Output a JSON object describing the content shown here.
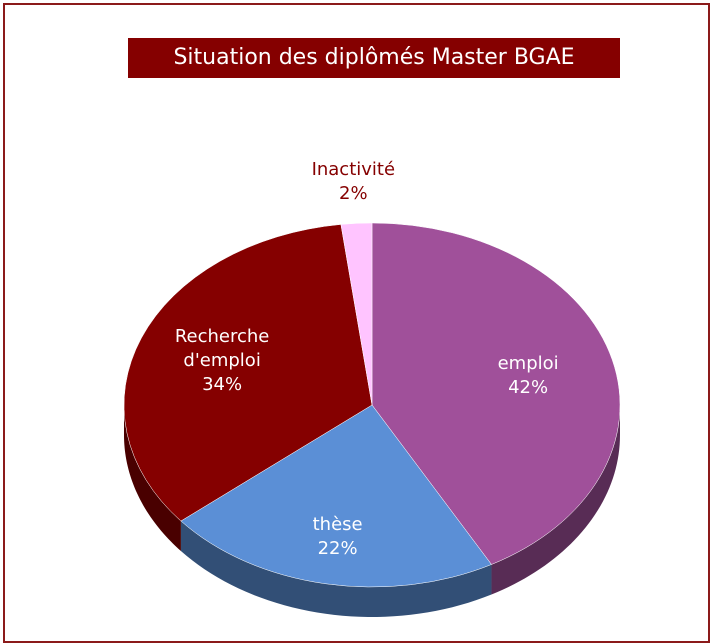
{
  "chart_data": {
    "type": "pie",
    "title": "Situation des diplômés Master BGAE",
    "categories": [
      "emploi",
      "thèse",
      "Recherche d'emploi",
      "Inactivité"
    ],
    "values": [
      42,
      22,
      34,
      2
    ],
    "value_labels": [
      "42%",
      "22%",
      "34%",
      "2%"
    ],
    "colors": [
      "#a0509a",
      "#5b8fd6",
      "#850000",
      "#ffc4ff"
    ]
  }
}
